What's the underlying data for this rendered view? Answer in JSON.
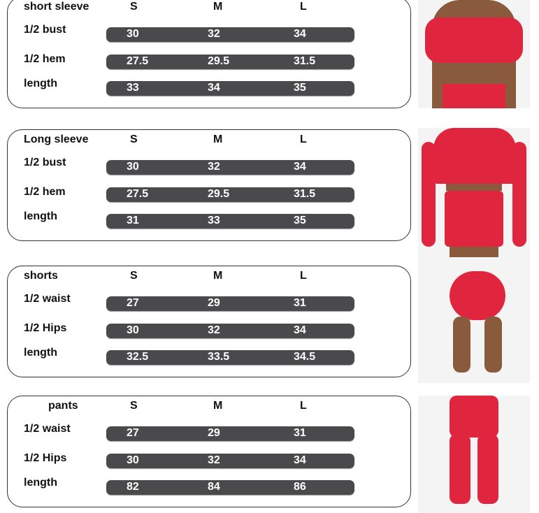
{
  "sizes": [
    "S",
    "M",
    "L"
  ],
  "colors": {
    "bar": "#4a4a4c",
    "garment": "#e0253f"
  },
  "panels": [
    {
      "title": "short sleeve",
      "rows": [
        {
          "label": "1/2 bust",
          "values": [
            "30",
            "32",
            "34"
          ]
        },
        {
          "label": "1/2 hem",
          "values": [
            "27.5",
            "29.5",
            "31.5"
          ]
        },
        {
          "label": "length",
          "values": [
            "33",
            "34",
            "35"
          ]
        }
      ]
    },
    {
      "title": "Long sleeve",
      "rows": [
        {
          "label": "1/2 bust",
          "values": [
            "30",
            "32",
            "34"
          ]
        },
        {
          "label": "1/2 hem",
          "values": [
            "27.5",
            "29.5",
            "31.5"
          ]
        },
        {
          "label": "length",
          "values": [
            "31",
            "33",
            "35"
          ]
        }
      ]
    },
    {
      "title": "shorts",
      "rows": [
        {
          "label": "1/2 waist",
          "values": [
            "27",
            "29",
            "31"
          ]
        },
        {
          "label": "1/2 Hips",
          "values": [
            "30",
            "32",
            "34"
          ]
        },
        {
          "label": "length",
          "values": [
            "32.5",
            "33.5",
            "34.5"
          ]
        }
      ]
    },
    {
      "title": "pants",
      "rows": [
        {
          "label": "1/2 waist",
          "values": [
            "27",
            "29",
            "31"
          ]
        },
        {
          "label": "1/2 Hips",
          "values": [
            "30",
            "32",
            "34"
          ]
        },
        {
          "label": "length",
          "values": [
            "82",
            "84",
            "86"
          ]
        }
      ]
    }
  ]
}
